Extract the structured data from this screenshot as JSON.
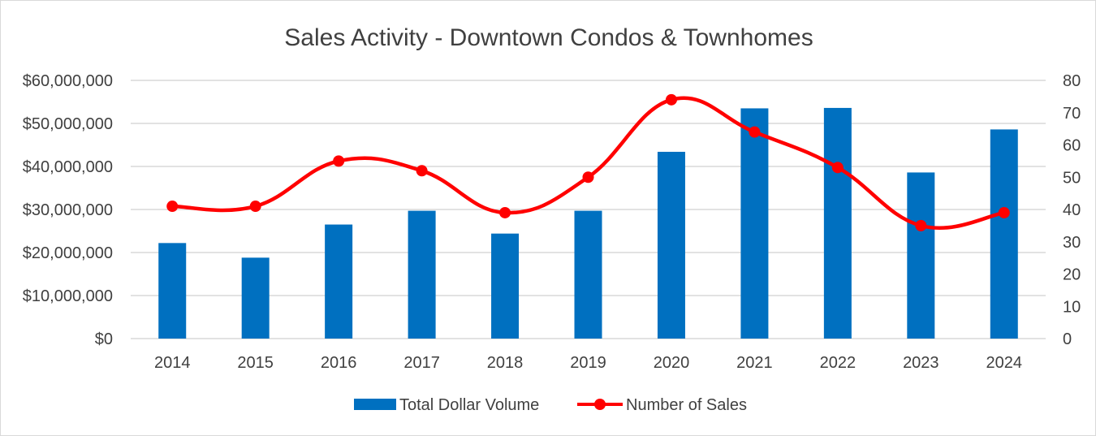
{
  "chart_data": {
    "type": "bar+line",
    "title": "Sales Activity - Downtown Condos & Townhomes",
    "categories": [
      "2014",
      "2015",
      "2016",
      "2017",
      "2018",
      "2019",
      "2020",
      "2021",
      "2022",
      "2023",
      "2024"
    ],
    "series": [
      {
        "name": "Total Dollar Volume",
        "type": "bar",
        "axis": "left",
        "color": "#0070c0",
        "values": [
          22200000,
          18800000,
          26500000,
          29700000,
          24400000,
          29700000,
          43400000,
          53500000,
          53600000,
          38600000,
          48600000
        ]
      },
      {
        "name": "Number of Sales",
        "type": "line",
        "smooth": true,
        "marker": "circle",
        "axis": "right",
        "color": "#ff0000",
        "values": [
          41,
          41,
          55,
          52,
          39,
          50,
          74,
          64,
          53,
          35,
          39
        ]
      }
    ],
    "left_axis": {
      "min": 0,
      "max": 60000000,
      "step": 10000000,
      "tick_labels": [
        "$0",
        "$10,000,000",
        "$20,000,000",
        "$30,000,000",
        "$40,000,000",
        "$50,000,000",
        "$60,000,000"
      ]
    },
    "right_axis": {
      "min": 0,
      "max": 80,
      "step": 10,
      "tick_labels": [
        "0",
        "10",
        "20",
        "30",
        "40",
        "50",
        "60",
        "70",
        "80"
      ]
    },
    "grid": true,
    "legend_position": "bottom-center",
    "legend": [
      "Total Dollar Volume",
      "Number of Sales"
    ],
    "colors": {
      "bar": "#0070c0",
      "line": "#ff0000",
      "grid": "#d9d9d9",
      "text": "#404040"
    }
  }
}
